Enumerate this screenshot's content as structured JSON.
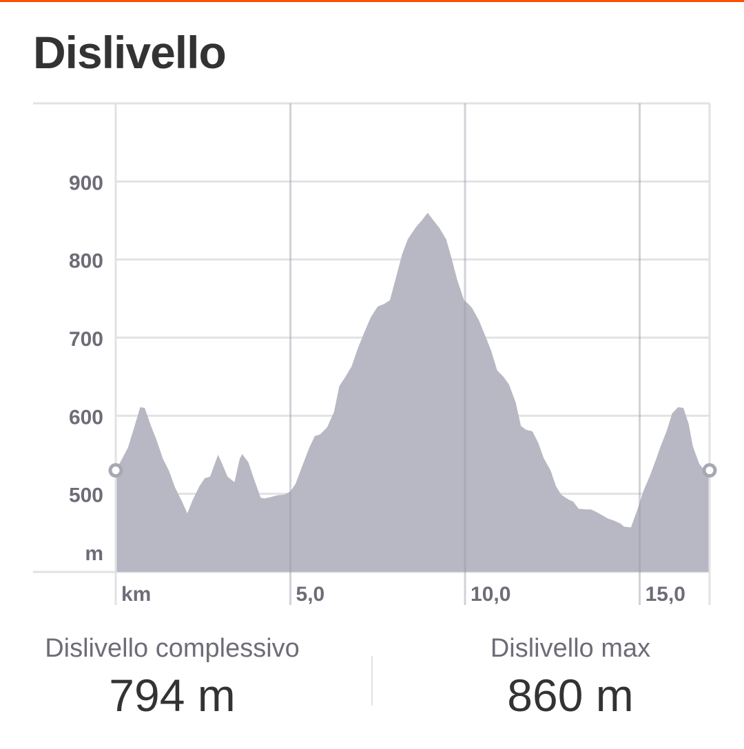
{
  "header": {
    "title": "Dislivello"
  },
  "stats": {
    "total_label": "Dislivello complessivo",
    "total_value": "794 m",
    "max_label": "Dislivello max",
    "max_value": "860 m"
  },
  "colors": {
    "accent": "#fc5200",
    "area_fill": "#b8b8c4",
    "grid": "#e2e2e5",
    "label": "#6d6d78"
  },
  "chart_data": {
    "type": "area",
    "xlabel": "km",
    "ylabel": "m",
    "xlim": [
      0,
      17
    ],
    "ylim": [
      400,
      1000
    ],
    "xticks": [
      {
        "v": 5,
        "label": "5,0"
      },
      {
        "v": 10,
        "label": "10,0"
      },
      {
        "v": 15,
        "label": "15,0"
      }
    ],
    "yticks": [
      {
        "v": 500,
        "label": "500"
      },
      {
        "v": 600,
        "label": "600"
      },
      {
        "v": 700,
        "label": "700"
      },
      {
        "v": 800,
        "label": "800"
      },
      {
        "v": 900,
        "label": "900"
      }
    ],
    "grid": true,
    "x": [
      0,
      0.16,
      0.35,
      0.52,
      0.7,
      0.83,
      1.0,
      1.16,
      1.35,
      1.52,
      1.7,
      1.9,
      2.05,
      2.2,
      2.4,
      2.55,
      2.7,
      2.93,
      3.05,
      3.2,
      3.4,
      3.55,
      3.62,
      3.8,
      3.95,
      4.15,
      4.25,
      4.45,
      4.62,
      4.83,
      5.0,
      5.15,
      5.35,
      5.55,
      5.7,
      5.85,
      6.05,
      6.25,
      6.4,
      6.55,
      6.75,
      6.92,
      7.1,
      7.3,
      7.5,
      7.68,
      7.85,
      8.0,
      8.2,
      8.36,
      8.6,
      8.76,
      8.93,
      9.08,
      9.26,
      9.46,
      9.6,
      9.77,
      9.97,
      10.1,
      10.2,
      10.4,
      10.6,
      10.75,
      10.92,
      11.1,
      11.26,
      11.45,
      11.6,
      11.75,
      11.93,
      12.1,
      12.25,
      12.45,
      12.6,
      12.75,
      12.95,
      13.1,
      13.25,
      13.45,
      13.6,
      13.75,
      13.95,
      14.1,
      14.25,
      14.45,
      14.55,
      14.75,
      14.95,
      15.1,
      15.3,
      15.45,
      15.6,
      15.77,
      15.93,
      16.1,
      16.25,
      16.4,
      16.52,
      16.7,
      16.85,
      17.0
    ],
    "y": [
      530,
      543,
      559,
      584,
      611,
      610,
      588,
      570,
      545,
      530,
      508,
      490,
      475,
      492,
      510,
      520,
      522,
      550,
      538,
      522,
      515,
      545,
      551,
      540,
      520,
      495,
      494,
      496,
      498,
      499,
      503,
      513,
      537,
      560,
      574,
      576,
      585,
      605,
      638,
      648,
      663,
      685,
      705,
      726,
      740,
      743,
      748,
      773,
      807,
      826,
      842,
      850,
      860,
      851,
      841,
      826,
      804,
      775,
      748,
      743,
      738,
      722,
      700,
      683,
      658,
      650,
      640,
      617,
      587,
      582,
      580,
      565,
      546,
      530,
      510,
      499,
      493,
      490,
      481,
      480,
      480,
      477,
      472,
      468,
      466,
      462,
      458,
      457,
      482,
      503,
      524,
      542,
      561,
      580,
      603,
      611,
      610,
      590,
      561,
      539,
      530,
      530
    ]
  }
}
